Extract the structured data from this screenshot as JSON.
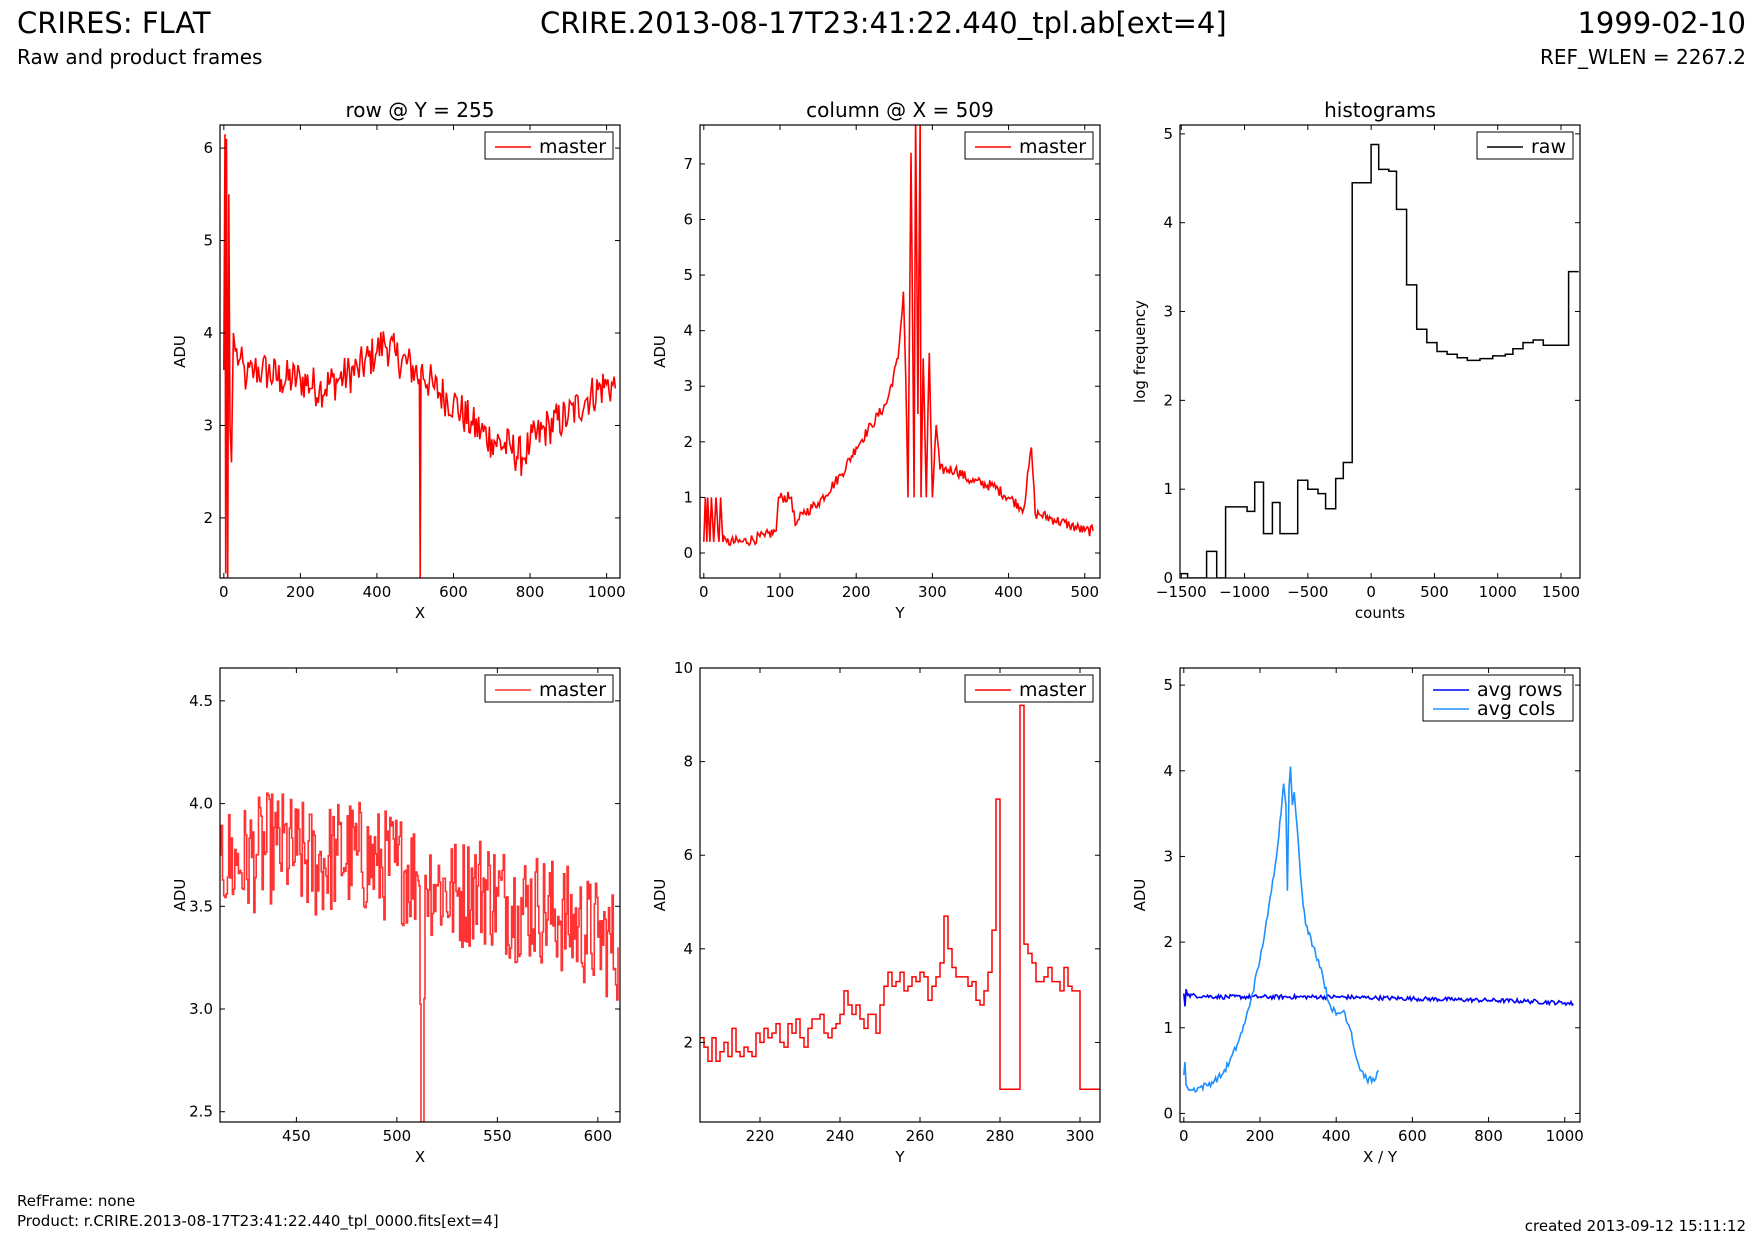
{
  "header": {
    "title": "CRIRES: FLAT",
    "subtitle": "Raw and product frames",
    "file": "CRIRE.2013-08-17T23:41:22.440_tpl.ab[ext=4]",
    "date": "1999-02-10",
    "ref_wlen": "REF_WLEN = 2267.2"
  },
  "footer": {
    "refframe": "RefFrame: none",
    "product": "Product: r.CRIRE.2013-08-17T23:41:22.440_tpl_0000.fits[ext=4]",
    "created": "created 2013-09-12 15:11:12"
  },
  "colors": {
    "master": "#ff0000",
    "master_zoom": "#ff3333",
    "raw": "#000000",
    "avg_rows": "#0000ff",
    "avg_cols": "#1e90ff"
  },
  "chart_data": [
    {
      "id": "row",
      "type": "line",
      "title": "row @ Y = 255",
      "xlabel": "X",
      "ylabel": "ADU",
      "xlim": [
        -10,
        1035
      ],
      "ylim": [
        1.35,
        6.25
      ],
      "xticks": [
        0,
        200,
        400,
        600,
        800,
        1000
      ],
      "yticks": [
        2,
        3,
        4,
        5,
        6
      ],
      "legend": "top-right",
      "series": [
        {
          "name": "master",
          "color": "#ff0000",
          "x": [
            0,
            3,
            5,
            7,
            10,
            13,
            16,
            20,
            25,
            30,
            40,
            60,
            80,
            100,
            150,
            200,
            250,
            300,
            350,
            400,
            420,
            450,
            500,
            511,
            513,
            515,
            550,
            600,
            650,
            700,
            750,
            780,
            800,
            850,
            900,
            950,
            1000,
            1023
          ],
          "y": [
            3.6,
            6.15,
            1.4,
            6.1,
            1.35,
            5.5,
            3.0,
            2.6,
            4.0,
            3.8,
            3.7,
            3.5,
            3.6,
            3.6,
            3.5,
            3.5,
            3.4,
            3.5,
            3.6,
            3.8,
            3.9,
            3.75,
            3.6,
            3.5,
            1.35,
            3.6,
            3.4,
            3.25,
            3.0,
            2.85,
            2.75,
            2.65,
            2.8,
            3.0,
            3.1,
            3.3,
            3.45,
            3.4
          ],
          "noise": 0.22
        }
      ]
    },
    {
      "id": "col",
      "type": "line",
      "title": "column @ X = 509",
      "xlabel": "Y",
      "ylabel": "ADU",
      "xlim": [
        -5,
        520
      ],
      "ylim": [
        -0.45,
        7.7
      ],
      "xticks": [
        0,
        100,
        200,
        300,
        400,
        500
      ],
      "yticks": [
        0,
        1,
        2,
        3,
        4,
        5,
        6,
        7
      ],
      "legend": "top-right",
      "series": [
        {
          "name": "master",
          "color": "#ff0000",
          "x": [
            0,
            2,
            4,
            5,
            8,
            10,
            13,
            16,
            20,
            22,
            25,
            30,
            50,
            80,
            95,
            98,
            100,
            115,
            120,
            125,
            130,
            150,
            180,
            200,
            220,
            240,
            255,
            262,
            265,
            268,
            272,
            276,
            278,
            281,
            284,
            285,
            288,
            292,
            296,
            300,
            305,
            310,
            330,
            350,
            380,
            400,
            420,
            430,
            435,
            440,
            460,
            480,
            500,
            511
          ],
          "y": [
            0.2,
            1.0,
            0.2,
            1.0,
            0.2,
            1.0,
            0.2,
            1.0,
            0.2,
            1.0,
            0.2,
            0.2,
            0.2,
            0.3,
            0.4,
            1.0,
            1.0,
            1.0,
            0.5,
            0.6,
            0.7,
            0.9,
            1.4,
            1.9,
            2.3,
            2.7,
            3.5,
            4.7,
            3.2,
            1.0,
            7.2,
            1.0,
            7.9,
            2.5,
            7.9,
            1.0,
            3.5,
            1.0,
            3.6,
            1.0,
            2.3,
            1.5,
            1.5,
            1.3,
            1.2,
            1.0,
            0.8,
            1.9,
            0.7,
            0.7,
            0.6,
            0.5,
            0.4,
            0.4
          ],
          "noise": 0.1
        }
      ]
    },
    {
      "id": "hist",
      "type": "line",
      "title": "histograms",
      "xlabel": "counts",
      "ylabel": "log frequency",
      "xlim": [
        -1510,
        1650
      ],
      "ylim": [
        0,
        5.1
      ],
      "xticks": [
        -1500,
        -1000,
        -500,
        0,
        500,
        1000,
        1500
      ],
      "xticklabels": [
        "−1500",
        "−1000",
        "−500",
        "0",
        "500",
        "1000",
        "1500"
      ],
      "yticks": [
        0,
        1,
        2,
        3,
        4,
        5
      ],
      "legend": "top-right",
      "series": [
        {
          "name": "raw",
          "color": "#000000",
          "step": true,
          "x": [
            -1510,
            -1450,
            -1380,
            -1300,
            -1220,
            -1150,
            -1070,
            -980,
            -920,
            -850,
            -780,
            -720,
            -650,
            -580,
            -500,
            -420,
            -360,
            -280,
            -220,
            -150,
            -100,
            -80,
            0,
            60,
            140,
            200,
            280,
            360,
            440,
            520,
            600,
            680,
            760,
            860,
            960,
            1060,
            1120,
            1200,
            1280,
            1360,
            1420,
            1500,
            1560,
            1640
          ],
          "y": [
            0.05,
            0,
            0,
            0.3,
            0,
            0.8,
            0.8,
            0.75,
            1.08,
            0.5,
            0.85,
            0.5,
            0.5,
            1.1,
            1.0,
            0.95,
            0.78,
            1.12,
            1.3,
            4.45,
            4.45,
            4.45,
            4.88,
            4.6,
            4.58,
            4.15,
            3.3,
            2.8,
            2.65,
            2.55,
            2.52,
            2.48,
            2.45,
            2.47,
            2.5,
            2.52,
            2.58,
            2.65,
            2.68,
            2.62,
            2.62,
            2.62,
            3.45,
            3.45
          ]
        }
      ]
    },
    {
      "id": "rowzoom",
      "type": "line",
      "title": "",
      "xlabel": "X",
      "ylabel": "ADU",
      "xlim": [
        412,
        611
      ],
      "ylim": [
        2.45,
        4.66
      ],
      "xticks": [
        450,
        500,
        550,
        600
      ],
      "yticks": [
        2.5,
        3.0,
        3.5,
        4.0,
        4.5
      ],
      "yticklabels": [
        "2.5",
        "3.0",
        "3.5",
        "4.0",
        "4.5"
      ],
      "legend": "top-right",
      "series": [
        {
          "name": "master",
          "color": "#ff3333",
          "step": true,
          "x": [
            412,
            420,
            430,
            440,
            450,
            460,
            470,
            480,
            490,
            500,
            510,
            511,
            512,
            513,
            514,
            520,
            530,
            540,
            550,
            560,
            570,
            580,
            590,
            600,
            610
          ],
          "y": [
            3.75,
            3.7,
            3.75,
            3.8,
            3.75,
            3.7,
            3.75,
            3.75,
            3.7,
            3.7,
            3.65,
            3.6,
            2.45,
            2.45,
            3.65,
            3.6,
            3.55,
            3.6,
            3.55,
            3.5,
            3.5,
            3.45,
            3.4,
            3.35,
            3.3
          ],
          "noise": 0.28
        }
      ]
    },
    {
      "id": "colzoom",
      "type": "line",
      "title": "",
      "xlabel": "Y",
      "ylabel": "ADU",
      "xlim": [
        205,
        305
      ],
      "ylim": [
        0.3,
        10
      ],
      "xticks": [
        220,
        240,
        260,
        280,
        300
      ],
      "yticks": [
        2,
        4,
        6,
        8,
        10
      ],
      "legend": "top-right",
      "series": [
        {
          "name": "master",
          "color": "#ff0000",
          "step": true,
          "x": [
            205,
            206,
            207,
            208,
            209,
            210,
            211,
            212,
            213,
            214,
            215,
            216,
            217,
            218,
            219,
            220,
            221,
            222,
            223,
            224,
            225,
            226,
            227,
            228,
            229,
            230,
            231,
            232,
            233,
            234,
            235,
            236,
            237,
            238,
            239,
            240,
            241,
            242,
            243,
            244,
            245,
            246,
            247,
            248,
            249,
            250,
            251,
            252,
            253,
            254,
            255,
            256,
            257,
            258,
            259,
            260,
            261,
            262,
            263,
            264,
            265,
            266,
            267,
            268,
            269,
            270,
            271,
            272,
            273,
            274,
            275,
            276,
            277,
            278,
            279,
            280,
            281,
            282,
            283,
            284,
            285,
            286,
            287,
            288,
            289,
            290,
            291,
            292,
            293,
            294,
            295,
            296,
            297,
            298,
            299,
            300,
            301,
            302,
            303,
            304,
            305
          ],
          "y": [
            2.1,
            1.9,
            1.6,
            2.1,
            1.6,
            1.8,
            2.0,
            1.7,
            2.3,
            1.8,
            1.7,
            1.9,
            1.8,
            1.7,
            2.2,
            2.0,
            2.3,
            2.1,
            2.2,
            2.4,
            2.0,
            1.9,
            2.4,
            2.2,
            2.5,
            2.1,
            1.9,
            2.3,
            2.5,
            2.5,
            2.6,
            2.2,
            2.1,
            2.3,
            2.4,
            2.6,
            3.1,
            2.8,
            2.6,
            2.8,
            2.5,
            2.3,
            2.6,
            2.6,
            2.2,
            2.8,
            3.2,
            3.5,
            3.2,
            3.3,
            3.5,
            3.1,
            3.2,
            3.4,
            3.3,
            3.5,
            3.4,
            2.9,
            3.2,
            3.4,
            3.7,
            4.7,
            4.0,
            3.6,
            3.4,
            3.4,
            3.4,
            3.2,
            3.3,
            2.9,
            2.8,
            3.1,
            3.5,
            4.4,
            7.2,
            1.0,
            1.0,
            1.0,
            1.0,
            1.0,
            9.2,
            4.1,
            3.9,
            3.7,
            3.3,
            3.3,
            3.4,
            3.6,
            3.3,
            3.3,
            3.1,
            3.6,
            3.2,
            3.1,
            3.1,
            1.0,
            1.0,
            1.0,
            1.0,
            1.0,
            1.0
          ]
        }
      ]
    },
    {
      "id": "avg",
      "type": "line",
      "title": "",
      "xlabel": "X / Y",
      "ylabel": "ADU",
      "xlim": [
        -10,
        1040
      ],
      "ylim": [
        -0.1,
        5.2
      ],
      "xticks": [
        0,
        200,
        400,
        600,
        800,
        1000
      ],
      "yticks": [
        0,
        1,
        2,
        3,
        4,
        5
      ],
      "legend": "top-right",
      "series": [
        {
          "name": "avg rows",
          "color": "#0000ff",
          "x": [
            0,
            3,
            6,
            10,
            50,
            100,
            200,
            300,
            400,
            500,
            600,
            700,
            800,
            900,
            1000,
            1023
          ],
          "y": [
            1.4,
            1.25,
            1.45,
            1.38,
            1.37,
            1.36,
            1.36,
            1.36,
            1.36,
            1.35,
            1.34,
            1.33,
            1.32,
            1.31,
            1.29,
            1.28
          ],
          "noise": 0.025
        },
        {
          "name": "avg cols",
          "color": "#1e90ff",
          "x": [
            0,
            3,
            6,
            10,
            20,
            40,
            60,
            80,
            100,
            120,
            140,
            160,
            180,
            200,
            220,
            240,
            255,
            262,
            268,
            272,
            276,
            280,
            285,
            290,
            300,
            310,
            320,
            340,
            360,
            380,
            400,
            420,
            440,
            450,
            460,
            480,
            500,
            511
          ],
          "y": [
            0.45,
            0.6,
            0.33,
            0.3,
            0.27,
            0.3,
            0.33,
            0.38,
            0.45,
            0.6,
            0.8,
            1.05,
            1.4,
            1.8,
            2.3,
            2.9,
            3.5,
            3.85,
            3.6,
            2.6,
            3.8,
            4.05,
            3.6,
            3.75,
            3.2,
            2.6,
            2.2,
            1.95,
            1.7,
            1.3,
            1.15,
            1.2,
            0.95,
            0.7,
            0.55,
            0.4,
            0.38,
            0.5
          ],
          "noise": 0.04
        }
      ]
    }
  ]
}
